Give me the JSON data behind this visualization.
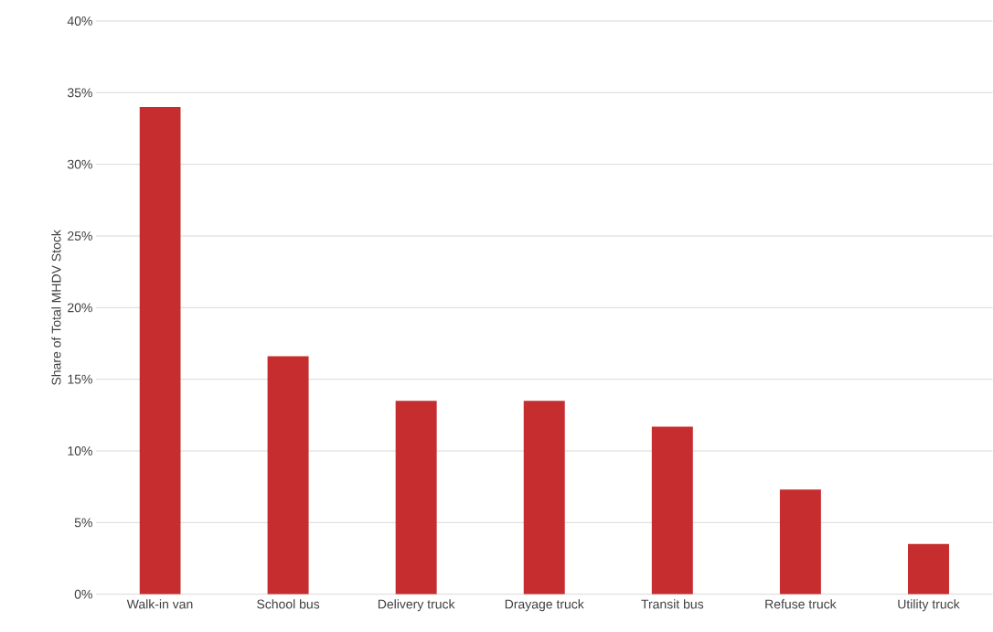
{
  "chart_data": {
    "type": "bar",
    "ylabel": "Share of Total MHDV Stock",
    "categories": [
      "Walk-in van",
      "School bus",
      "Delivery truck",
      "Drayage truck",
      "Transit bus",
      "Refuse truck",
      "Utility truck"
    ],
    "values": [
      34.0,
      16.6,
      13.5,
      13.5,
      11.7,
      7.3,
      3.5
    ],
    "color": "#c62d2f",
    "ylim": [
      0,
      40
    ],
    "yticks": [
      {
        "value": 0,
        "label": "0%"
      },
      {
        "value": 5,
        "label": "5%"
      },
      {
        "value": 10,
        "label": "10%"
      },
      {
        "value": 15,
        "label": "15%"
      },
      {
        "value": 20,
        "label": "20%"
      },
      {
        "value": 25,
        "label": "25%"
      },
      {
        "value": 30,
        "label": "30%"
      },
      {
        "value": 35,
        "label": "35%"
      },
      {
        "value": 40,
        "label": "40%"
      }
    ],
    "grid": "y"
  }
}
